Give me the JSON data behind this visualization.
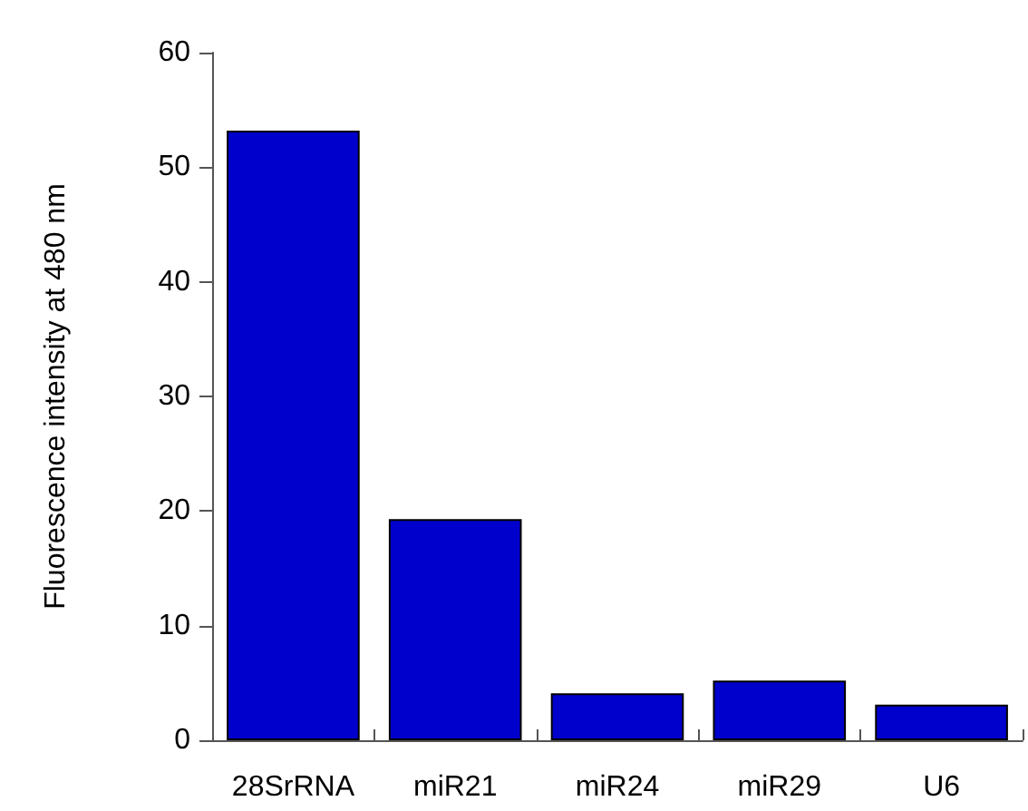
{
  "chart_data": {
    "type": "bar",
    "ylabel": "Fluorescence intensity at 480 nm",
    "categories": [
      "28SrRNA",
      "miR21",
      "miR24",
      "miR29",
      "U6"
    ],
    "values": [
      53.2,
      19.3,
      4.1,
      5.2,
      3.1
    ],
    "color": "#0000cc",
    "ylim": [
      0,
      60
    ],
    "yticks": [
      0,
      10,
      20,
      30,
      40,
      50,
      60
    ]
  }
}
